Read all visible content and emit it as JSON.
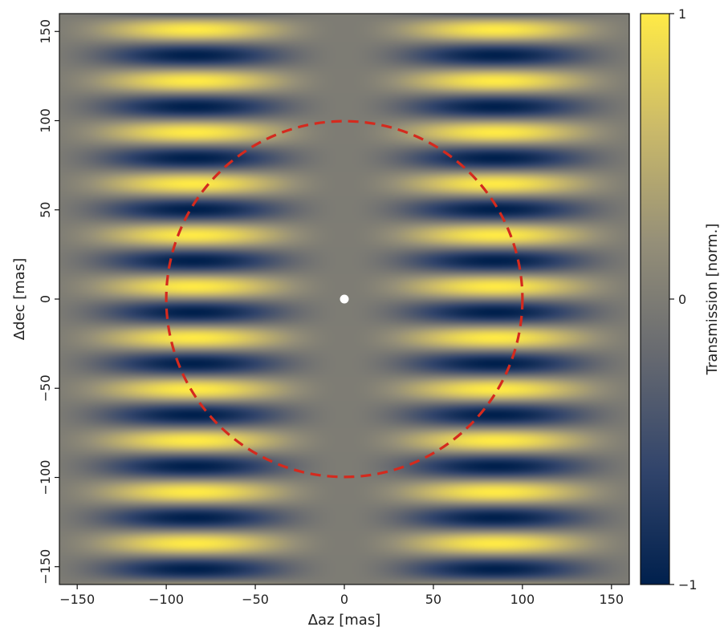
{
  "chart_data": {
    "type": "heatmap",
    "title": "",
    "xlabel": "Δaz [mas]",
    "ylabel": "Δdec [mas]",
    "xlim": [
      -160,
      160
    ],
    "ylim": [
      -160,
      160
    ],
    "x_ticks": [
      -150,
      -100,
      -50,
      0,
      50,
      100,
      150
    ],
    "y_ticks": [
      -150,
      -100,
      -50,
      0,
      50,
      100,
      150
    ],
    "x_tick_labels": [
      "−150",
      "−100",
      "−50",
      "0",
      "50",
      "100",
      "150"
    ],
    "y_tick_labels": [
      "−150",
      "−100",
      "−50",
      "0",
      "50",
      "100",
      "150"
    ],
    "grid": false,
    "field": {
      "description_of_pattern": "transmission map: horizontal fringes along Δdec, envelope peaking near |Δaz| ≈ 85 mas, zero along Δaz = 0",
      "dec_fringe_period_mas": 28.8,
      "az_envelope_peak_mas": 85,
      "value_range": [
        -1,
        1
      ]
    },
    "overlays": [
      {
        "kind": "dashed-circle",
        "center": [
          0,
          0
        ],
        "radius": 100,
        "color": "#d42a1e"
      },
      {
        "kind": "point",
        "x": 0,
        "y": 0,
        "color": "#ffffff"
      }
    ],
    "colorbar": {
      "label": "Transmission [norm.]",
      "ticks": [
        -1,
        0,
        1
      ],
      "tick_labels": [
        "−1",
        "0",
        "1"
      ],
      "colormap": "cividis",
      "stops": [
        "#00204d",
        "#31446b",
        "#666970",
        "#958f78",
        "#cbba69",
        "#ffea46"
      ]
    }
  }
}
